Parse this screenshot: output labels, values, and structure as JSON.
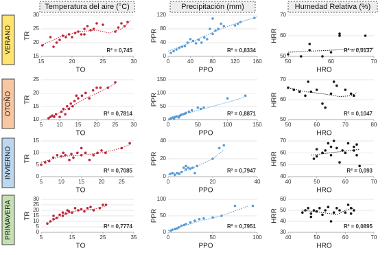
{
  "column_headers": [
    "Temperatura del aire (°C)",
    "Precipitación (mm)",
    "Humedad Relativa (%)"
  ],
  "row_labels": [
    "VERANO",
    "OTOÑO",
    "INVIERNO",
    "PRIMAVERA"
  ],
  "chart_data": [
    {
      "type": "scatter",
      "x_label": "TO",
      "y_label": "TR",
      "annotation": "R² = 0,745",
      "color": "#c0273b",
      "grid": true,
      "xlim": [
        15,
        30
      ],
      "ylim": [
        15,
        30
      ],
      "xticks": [
        15,
        20,
        25,
        30
      ],
      "yticks": [
        15,
        20,
        25,
        30
      ],
      "x": [
        15.2,
        16.5,
        17,
        17.5,
        18,
        18.5,
        19,
        19.5,
        20,
        20.5,
        21,
        21.5,
        22,
        22.5,
        23,
        23.5,
        24,
        25,
        27,
        27.5,
        28,
        28.5,
        29,
        22
      ],
      "values": [
        19,
        22,
        18.5,
        20,
        21,
        22.5,
        22,
        23,
        22,
        23.5,
        24,
        23,
        25,
        26,
        24.5,
        25,
        27,
        26.5,
        24,
        25.5,
        27,
        26,
        27.5,
        23
      ],
      "trend": {
        "x": [
          15,
          18,
          21,
          24,
          26,
          28,
          29.5
        ],
        "values": [
          19,
          22,
          24,
          24.5,
          23.5,
          25,
          28
        ]
      }
    },
    {
      "type": "scatter",
      "x_label": "PPO",
      "y_label": "PPR",
      "annotation": "R² = 0,8334",
      "color": "#5b9bd5",
      "grid": true,
      "xlim": [
        0,
        160
      ],
      "ylim": [
        0,
        120
      ],
      "xticks": [
        0,
        40,
        80,
        120,
        160
      ],
      "yticks": [
        0,
        40,
        80,
        120
      ],
      "x": [
        5,
        10,
        15,
        20,
        25,
        30,
        35,
        40,
        45,
        50,
        55,
        60,
        65,
        70,
        75,
        80,
        80,
        85,
        90,
        95,
        100,
        120,
        125,
        130,
        155
      ],
      "values": [
        10,
        15,
        20,
        25,
        28,
        30,
        40,
        50,
        45,
        38,
        48,
        40,
        55,
        50,
        80,
        65,
        110,
        75,
        80,
        95,
        88,
        90,
        95,
        100,
        112
      ],
      "trend": {
        "x": [
          0,
          40,
          80,
          120,
          160
        ],
        "values": [
          15,
          40,
          70,
          95,
          115
        ]
      }
    },
    {
      "type": "scatter",
      "x_label": "HRO",
      "y_label": "HRR",
      "annotation": "R² = 0,0137",
      "color": "#1a1a1a",
      "grid": true,
      "xlim": [
        50,
        70
      ],
      "ylim": [
        50,
        70
      ],
      "xticks": [
        50,
        60,
        70
      ],
      "yticks": [
        50,
        60,
        70
      ],
      "x": [
        50,
        53,
        55,
        55,
        58,
        62,
        62,
        68,
        60
      ],
      "values": [
        51,
        50,
        53,
        56,
        50,
        60,
        61,
        60,
        52
      ],
      "trend": {
        "x": [
          50,
          70
        ],
        "values": [
          52,
          54
        ]
      }
    },
    {
      "type": "scatter",
      "x_label": "TO",
      "y_label": "TR",
      "annotation": "R² = 0,7814",
      "color": "#c0273b",
      "grid": true,
      "xlim": [
        5,
        30
      ],
      "ylim": [
        10,
        25
      ],
      "xticks": [
        5,
        10,
        15,
        20,
        25,
        30
      ],
      "yticks": [
        10,
        15,
        20,
        25
      ],
      "x": [
        7,
        7.5,
        8,
        8.5,
        9,
        10,
        10.5,
        11,
        11.5,
        12,
        12.5,
        13,
        13.5,
        14,
        14.5,
        15,
        16,
        17,
        18,
        19,
        20,
        21,
        23,
        25
      ],
      "values": [
        10.5,
        11,
        11.5,
        11,
        12,
        11,
        13,
        14,
        12,
        15,
        14,
        16,
        15,
        17,
        19,
        18,
        19,
        20,
        18,
        21,
        22,
        22,
        22,
        24
      ],
      "trend": {
        "x": [
          7,
          12,
          17,
          21,
          25
        ],
        "values": [
          10.5,
          14,
          18,
          20.5,
          23.5
        ]
      }
    },
    {
      "type": "scatter",
      "x_label": "PPO",
      "y_label": "PPR",
      "annotation": "R² = 0,8871",
      "color": "#5b9bd5",
      "grid": true,
      "xlim": [
        0,
        150
      ],
      "ylim": [
        0,
        150
      ],
      "xticks": [
        0,
        50,
        100,
        150
      ],
      "yticks": [
        0,
        50,
        100,
        150
      ],
      "x": [
        3,
        5,
        8,
        10,
        12,
        15,
        18,
        20,
        22,
        25,
        28,
        30,
        35,
        40,
        50,
        55,
        60,
        100,
        130
      ],
      "values": [
        2,
        5,
        8,
        3,
        10,
        12,
        8,
        15,
        18,
        20,
        22,
        25,
        30,
        35,
        45,
        40,
        45,
        80,
        90
      ],
      "trend": {
        "x": [
          0,
          50,
          100,
          130
        ],
        "values": [
          2,
          35,
          65,
          85
        ]
      }
    },
    {
      "type": "scatter",
      "x_label": "HRO",
      "y_label": "HRR",
      "annotation": "R² = 0,1047",
      "color": "#1a1a1a",
      "grid": true,
      "xlim": [
        50,
        80
      ],
      "ylim": [
        50,
        70
      ],
      "xticks": [
        50,
        60,
        70,
        80
      ],
      "yticks": [
        50,
        60,
        70
      ],
      "x": [
        50,
        52,
        54,
        56,
        57,
        58,
        60,
        62,
        63,
        65,
        66,
        67,
        70,
        72,
        73
      ],
      "values": [
        66,
        65,
        64,
        62,
        69,
        64,
        65,
        58,
        56,
        63,
        69,
        67,
        65,
        63,
        62
      ],
      "trend": {
        "x": [
          50,
          56,
          62,
          68,
          72,
          74
        ],
        "values": [
          66,
          64,
          63,
          61.5,
          62,
          63.5
        ]
      }
    },
    {
      "type": "scatter",
      "x_label": "TO",
      "y_label": "TR",
      "annotation": "R² = 0,7085",
      "color": "#c0273b",
      "grid": true,
      "xlim": [
        5,
        28
      ],
      "ylim": [
        0,
        15
      ],
      "xticks": [
        5,
        10,
        15,
        20,
        25
      ],
      "yticks": [
        0,
        5,
        10,
        15
      ],
      "x": [
        5,
        6,
        7,
        8,
        9,
        10,
        10.5,
        11,
        12,
        12.5,
        13,
        14,
        15,
        15,
        16,
        17,
        18,
        19,
        20,
        21,
        25,
        27
      ],
      "values": [
        5,
        6,
        6.5,
        8,
        9,
        8.5,
        10,
        9,
        7,
        9.5,
        8,
        10,
        9,
        12,
        10,
        7,
        9,
        10,
        11,
        10,
        12,
        14
      ],
      "trend": {
        "x": [
          5,
          10,
          15,
          20,
          25,
          27
        ],
        "values": [
          6,
          8.5,
          9,
          10,
          12,
          13.5
        ]
      }
    },
    {
      "type": "scatter",
      "x_label": "PPO",
      "y_label": "PPR",
      "annotation": "R² = 0,7947",
      "color": "#5b9bd5",
      "grid": true,
      "xlim": [
        0,
        40
      ],
      "ylim": [
        0,
        40
      ],
      "xticks": [
        0,
        20,
        40
      ],
      "yticks": [
        0,
        20,
        40
      ],
      "x": [
        1,
        2,
        3,
        4,
        5,
        6,
        7,
        8,
        8,
        9,
        10,
        11,
        12,
        13,
        20,
        23,
        25
      ],
      "values": [
        3,
        4,
        2,
        4,
        3,
        5,
        10,
        8,
        12,
        10,
        9,
        10,
        4,
        12,
        20,
        32,
        35
      ],
      "trend": {
        "x": [
          0,
          10,
          20,
          25
        ],
        "values": [
          2,
          8,
          20,
          30
        ]
      }
    },
    {
      "type": "scatter",
      "x_label": "HRO",
      "y_label": "HRR",
      "annotation": "R² = 0,093",
      "color": "#1a1a1a",
      "grid": true,
      "xlim": [
        40,
        70
      ],
      "ylim": [
        40,
        70
      ],
      "xticks": [
        40,
        50,
        60,
        70
      ],
      "yticks": [
        40,
        50,
        60,
        70
      ],
      "x": [
        49,
        50,
        50,
        52,
        53,
        54,
        55,
        55,
        56,
        57,
        58,
        59,
        60,
        61,
        63,
        63,
        64,
        64,
        65
      ],
      "values": [
        55,
        57,
        63,
        60,
        62,
        68,
        65,
        58,
        70,
        64,
        52,
        62,
        60,
        68,
        65,
        62,
        58,
        67,
        49
      ],
      "trend": {
        "x": [
          48,
          65
        ],
        "values": [
          58,
          63
        ]
      }
    },
    {
      "type": "scatter",
      "x_label": "TO",
      "y_label": "TR",
      "annotation": "R² = 0,7774",
      "color": "#c0273b",
      "grid": true,
      "xlim": [
        5,
        35
      ],
      "ylim": [
        0,
        30
      ],
      "xticks": [
        5,
        15,
        25,
        35
      ],
      "yticks": [
        0,
        5,
        10,
        15,
        20,
        25,
        30
      ],
      "x": [
        7,
        8,
        9,
        9,
        10,
        11,
        12,
        12,
        13,
        13.5,
        14,
        15,
        16,
        17,
        18,
        19,
        20,
        21,
        22,
        24,
        25,
        26
      ],
      "values": [
        8,
        10,
        12,
        15,
        13,
        16,
        15,
        18,
        17,
        20,
        19,
        18,
        22,
        20,
        21,
        19,
        22,
        23,
        20,
        22,
        25,
        25
      ],
      "trend": {
        "x": [
          7,
          12,
          17,
          22,
          26
        ],
        "values": [
          8,
          16,
          20,
          21,
          24
        ]
      }
    },
    {
      "type": "scatter",
      "x_label": "PPO",
      "y_label": "PPR",
      "annotation": "R² = 0,7951",
      "color": "#5b9bd5",
      "grid": true,
      "xlim": [
        0,
        100
      ],
      "ylim": [
        0,
        100
      ],
      "xticks": [
        0,
        50,
        100
      ],
      "yticks": [
        0,
        50,
        100
      ],
      "x": [
        3,
        5,
        8,
        10,
        12,
        15,
        18,
        20,
        25,
        30,
        35,
        40,
        50,
        60,
        75,
        95
      ],
      "values": [
        5,
        8,
        10,
        12,
        15,
        20,
        22,
        25,
        30,
        35,
        40,
        42,
        45,
        50,
        80,
        80
      ],
      "trend": {
        "x": [
          0,
          30,
          60,
          90
        ],
        "values": [
          5,
          30,
          50,
          80
        ]
      }
    },
    {
      "type": "scatter",
      "x_label": "HRO",
      "y_label": "HRR",
      "annotation": "R² = 0,0895",
      "color": "#1a1a1a",
      "grid": true,
      "xlim": [
        40,
        70
      ],
      "ylim": [
        30,
        60
      ],
      "xticks": [
        40,
        50,
        60,
        70
      ],
      "yticks": [
        30,
        40,
        50,
        60
      ],
      "x": [
        45,
        46,
        47,
        48,
        48,
        49,
        50,
        51,
        52,
        53,
        54,
        55,
        56,
        57,
        58,
        60,
        61,
        62,
        63,
        62
      ],
      "values": [
        48,
        50,
        52,
        47,
        44,
        50,
        49,
        52,
        46,
        50,
        53,
        40,
        48,
        52,
        50,
        48,
        55,
        52,
        50,
        47
      ],
      "trend": {
        "x": [
          45,
          52,
          57,
          60,
          63
        ],
        "values": [
          50,
          48,
          46,
          50,
          52
        ]
      }
    }
  ]
}
